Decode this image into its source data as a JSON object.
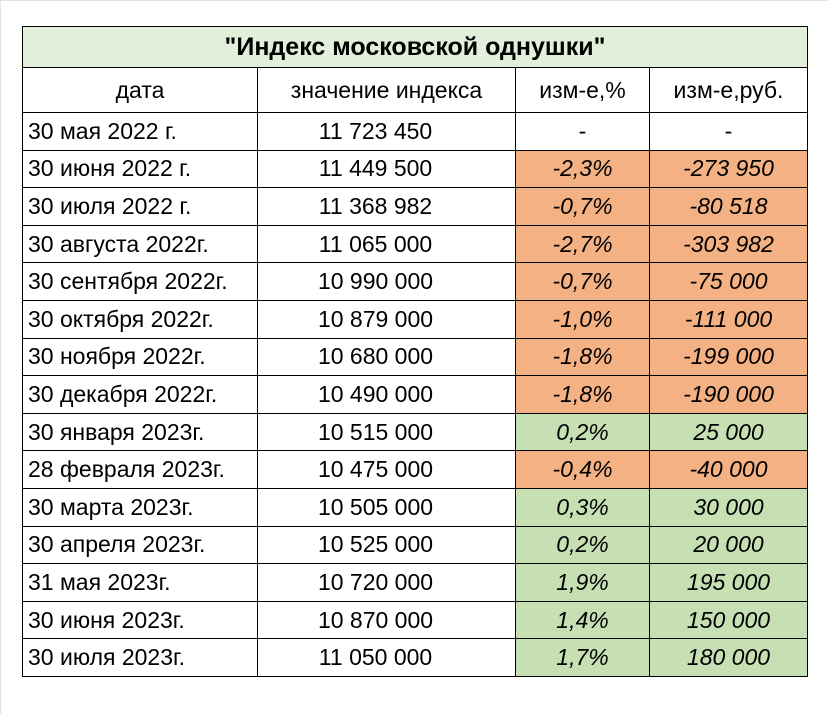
{
  "title": "\"Индекс московской однушки\"",
  "headers": [
    "дата",
    "значение индекса",
    "изм-е,%",
    "изм-е,руб."
  ],
  "colors": {
    "title_bg": "#e2efda",
    "negative_bg": "#f4b183",
    "positive_bg": "#c6e0b4"
  },
  "rows": [
    {
      "date": "30 мая 2022 г.",
      "value": "11 723 450",
      "pct": "-",
      "rub": "-",
      "trend": "none"
    },
    {
      "date": "30 июня 2022 г.",
      "value": "11 449 500",
      "pct": "-2,3%",
      "rub": "-273 950",
      "trend": "neg"
    },
    {
      "date": "30 июля 2022 г.",
      "value": "11 368 982",
      "pct": "-0,7%",
      "rub": "-80 518",
      "trend": "neg"
    },
    {
      "date": "30 августа 2022г.",
      "value": "11 065 000",
      "pct": "-2,7%",
      "rub": "-303 982",
      "trend": "neg"
    },
    {
      "date": "30 сентября 2022г.",
      "value": "10 990 000",
      "pct": "-0,7%",
      "rub": "-75 000",
      "trend": "neg"
    },
    {
      "date": "30 октября 2022г.",
      "value": "10 879 000",
      "pct": "-1,0%",
      "rub": "-111 000",
      "trend": "neg"
    },
    {
      "date": "30 ноября 2022г.",
      "value": "10 680 000",
      "pct": "-1,8%",
      "rub": "-199 000",
      "trend": "neg"
    },
    {
      "date": "30 декабря 2022г.",
      "value": "10 490 000",
      "pct": "-1,8%",
      "rub": "-190 000",
      "trend": "neg"
    },
    {
      "date": "30 января 2023г.",
      "value": "10 515 000",
      "pct": "0,2%",
      "rub": "25 000",
      "trend": "pos"
    },
    {
      "date": "28 февраля 2023г.",
      "value": "10 475 000",
      "pct": "-0,4%",
      "rub": "-40 000",
      "trend": "neg"
    },
    {
      "date": "30 марта 2023г.",
      "value": "10 505 000",
      "pct": "0,3%",
      "rub": "30 000",
      "trend": "pos"
    },
    {
      "date": "30 апреля 2023г.",
      "value": "10 525 000",
      "pct": "0,2%",
      "rub": "20 000",
      "trend": "pos"
    },
    {
      "date": "31 мая 2023г.",
      "value": "10 720 000",
      "pct": "1,9%",
      "rub": "195 000",
      "trend": "pos"
    },
    {
      "date": "30 июня 2023г.",
      "value": "10 870 000",
      "pct": "1,4%",
      "rub": "150 000",
      "trend": "pos"
    },
    {
      "date": "30 июля 2023г.",
      "value": "11 050 000",
      "pct": "1,7%",
      "rub": "180 000",
      "trend": "pos"
    }
  ]
}
